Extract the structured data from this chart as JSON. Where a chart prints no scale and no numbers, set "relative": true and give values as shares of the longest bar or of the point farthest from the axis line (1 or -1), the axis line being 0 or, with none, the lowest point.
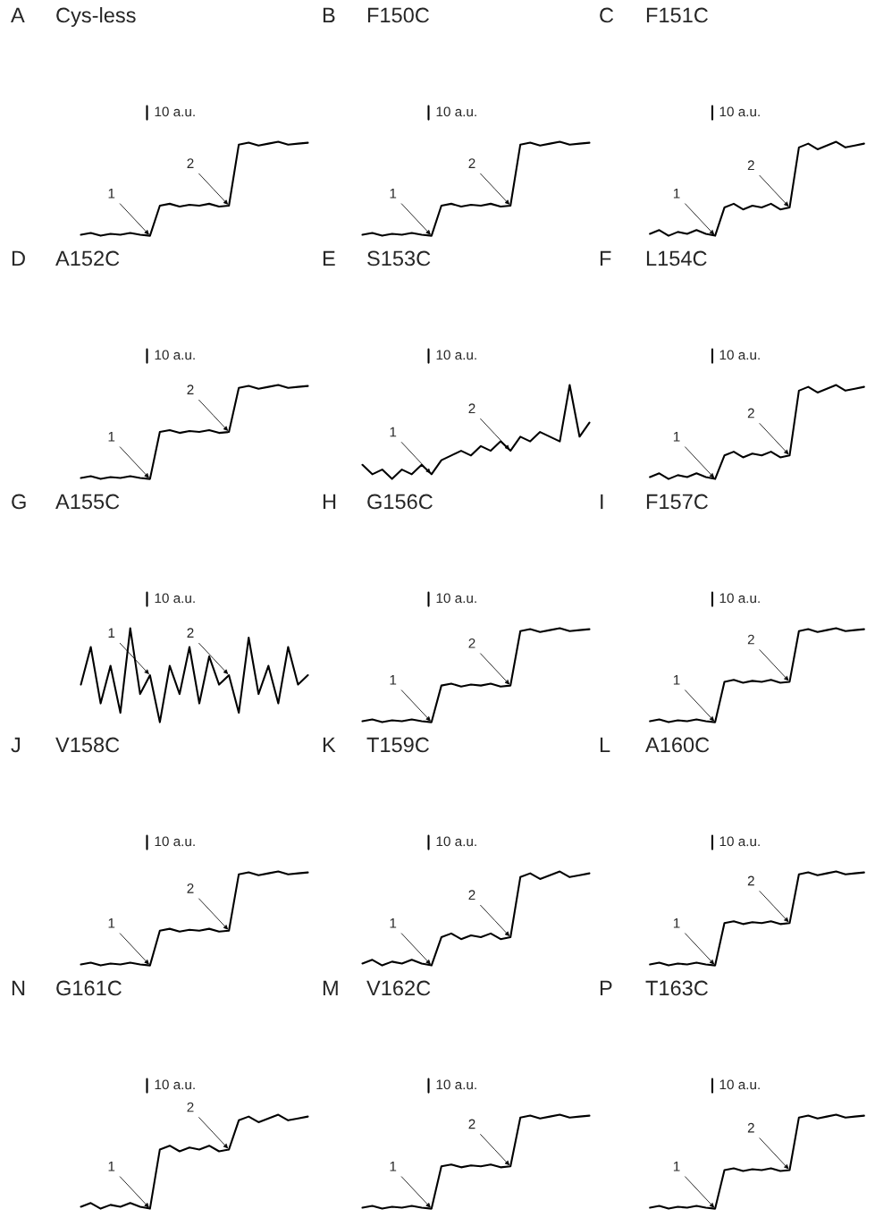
{
  "chart_data": [
    {
      "type": "line",
      "title": "A",
      "subtitle": "Cys-less",
      "relative": true,
      "categories": [
        null,
        null,
        null,
        null,
        null,
        null,
        null,
        null,
        null,
        null,
        null,
        null,
        null,
        null,
        null,
        null,
        null,
        null,
        null,
        null,
        null,
        null,
        null,
        null
      ],
      "series": [
        {
          "color": "#000000",
          "values": [
            0.01,
            0.03,
            0,
            0.02,
            0.01,
            0.03,
            0.01,
            0,
            0.32,
            0.34,
            0.31,
            0.33,
            0.32,
            0.34,
            0.31,
            0.32,
            0.97,
            0.99,
            0.96,
            0.98,
            1,
            0.97,
            0.98,
            0.99
          ]
        }
      ],
      "annotations": [
        "10 a.u.",
        "1",
        "2"
      ]
    },
    {
      "type": "line",
      "title": "B",
      "subtitle": "F150C",
      "relative": true,
      "categories": [
        null,
        null,
        null,
        null,
        null,
        null,
        null,
        null,
        null,
        null,
        null,
        null,
        null,
        null,
        null,
        null,
        null,
        null,
        null,
        null,
        null,
        null,
        null,
        null
      ],
      "series": [
        {
          "color": "#000000",
          "values": [
            0.01,
            0.03,
            0,
            0.02,
            0.01,
            0.03,
            0.01,
            0,
            0.32,
            0.34,
            0.31,
            0.33,
            0.32,
            0.34,
            0.31,
            0.32,
            0.97,
            0.99,
            0.96,
            0.98,
            1,
            0.97,
            0.98,
            0.99
          ]
        }
      ],
      "annotations": [
        "10 a.u.",
        "1",
        "2"
      ]
    },
    {
      "type": "line",
      "title": "C",
      "subtitle": "F151C",
      "relative": true,
      "categories": [
        null,
        null,
        null,
        null,
        null,
        null,
        null,
        null,
        null,
        null,
        null,
        null,
        null,
        null,
        null,
        null,
        null,
        null,
        null,
        null,
        null,
        null,
        null,
        null
      ],
      "series": [
        {
          "color": "#000000",
          "values": [
            0.02,
            0.06,
            0,
            0.04,
            0.02,
            0.06,
            0.02,
            0,
            0.3,
            0.34,
            0.28,
            0.32,
            0.3,
            0.34,
            0.28,
            0.3,
            0.94,
            0.98,
            0.92,
            0.96,
            1,
            0.94,
            0.96,
            0.98
          ]
        }
      ],
      "annotations": [
        "10 a.u.",
        "1",
        "2"
      ]
    },
    {
      "type": "line",
      "title": "D",
      "subtitle": "A152C",
      "relative": true,
      "categories": [
        null,
        null,
        null,
        null,
        null,
        null,
        null,
        null,
        null,
        null,
        null,
        null,
        null,
        null,
        null,
        null,
        null,
        null,
        null,
        null,
        null,
        null,
        null,
        null
      ],
      "series": [
        {
          "color": "#000000",
          "values": [
            0.01,
            0.03,
            0,
            0.02,
            0.01,
            0.03,
            0.01,
            0,
            0.5,
            0.52,
            0.49,
            0.51,
            0.5,
            0.52,
            0.49,
            0.5,
            0.97,
            0.99,
            0.96,
            0.98,
            1,
            0.97,
            0.98,
            0.99
          ]
        }
      ],
      "annotations": [
        "10 a.u.",
        "1",
        "2"
      ]
    },
    {
      "type": "line",
      "title": "E",
      "subtitle": "S153C",
      "relative": true,
      "categories": [
        null,
        null,
        null,
        null,
        null,
        null,
        null,
        null,
        null,
        null,
        null,
        null,
        null,
        null,
        null,
        null,
        null,
        null,
        null,
        null,
        null,
        null,
        null,
        null
      ],
      "series": [
        {
          "color": "#000000",
          "values": [
            0.15,
            0.05,
            0.1,
            0,
            0.1,
            0.05,
            0.15,
            0.05,
            0.2,
            0.25,
            0.3,
            0.25,
            0.35,
            0.3,
            0.4,
            0.3,
            0.45,
            0.4,
            0.5,
            0.45,
            0.4,
            1,
            0.45,
            0.6
          ]
        }
      ],
      "annotations": [
        "10 a.u.",
        "1",
        "2"
      ]
    },
    {
      "type": "line",
      "title": "F",
      "subtitle": "L154C",
      "relative": true,
      "categories": [
        null,
        null,
        null,
        null,
        null,
        null,
        null,
        null,
        null,
        null,
        null,
        null,
        null,
        null,
        null,
        null,
        null,
        null,
        null,
        null,
        null,
        null,
        null,
        null
      ],
      "series": [
        {
          "color": "#000000",
          "values": [
            0.02,
            0.06,
            0,
            0.04,
            0.02,
            0.06,
            0.02,
            0,
            0.25,
            0.29,
            0.23,
            0.27,
            0.25,
            0.29,
            0.23,
            0.25,
            0.94,
            0.98,
            0.92,
            0.96,
            1,
            0.94,
            0.96,
            0.98
          ]
        }
      ],
      "annotations": [
        "10 a.u.",
        "1",
        "2"
      ]
    },
    {
      "type": "line",
      "title": "G",
      "subtitle": "A155C",
      "relative": true,
      "categories": [
        null,
        null,
        null,
        null,
        null,
        null,
        null,
        null,
        null,
        null,
        null,
        null,
        null,
        null,
        null,
        null,
        null,
        null,
        null,
        null,
        null,
        null,
        null,
        null
      ],
      "series": [
        {
          "color": "#000000",
          "values": [
            0.4,
            0.8,
            0.2,
            0.6,
            0.1,
            1,
            0.3,
            0.5,
            0,
            0.6,
            0.3,
            0.8,
            0.2,
            0.7,
            0.4,
            0.5,
            0.1,
            0.9,
            0.3,
            0.6,
            0.2,
            0.8,
            0.4,
            0.5
          ]
        }
      ],
      "annotations": [
        "10 a.u.",
        "1",
        "2"
      ]
    },
    {
      "type": "line",
      "title": "H",
      "subtitle": "G156C",
      "relative": true,
      "categories": [
        null,
        null,
        null,
        null,
        null,
        null,
        null,
        null,
        null,
        null,
        null,
        null,
        null,
        null,
        null,
        null,
        null,
        null,
        null,
        null,
        null,
        null,
        null,
        null
      ],
      "series": [
        {
          "color": "#000000",
          "values": [
            0.01,
            0.03,
            0,
            0.02,
            0.01,
            0.03,
            0.01,
            0,
            0.39,
            0.41,
            0.38,
            0.4,
            0.39,
            0.41,
            0.38,
            0.39,
            0.97,
            0.99,
            0.96,
            0.98,
            1,
            0.97,
            0.98,
            0.99
          ]
        }
      ],
      "annotations": [
        "10 a.u.",
        "1",
        "2"
      ]
    },
    {
      "type": "line",
      "title": "I",
      "subtitle": "F157C",
      "relative": true,
      "categories": [
        null,
        null,
        null,
        null,
        null,
        null,
        null,
        null,
        null,
        null,
        null,
        null,
        null,
        null,
        null,
        null,
        null,
        null,
        null,
        null,
        null,
        null,
        null,
        null
      ],
      "series": [
        {
          "color": "#000000",
          "values": [
            0.01,
            0.03,
            0,
            0.02,
            0.01,
            0.03,
            0.01,
            0,
            0.43,
            0.45,
            0.42,
            0.44,
            0.43,
            0.45,
            0.42,
            0.43,
            0.97,
            0.99,
            0.96,
            0.98,
            1,
            0.97,
            0.98,
            0.99
          ]
        }
      ],
      "annotations": [
        "10 a.u.",
        "1",
        "2"
      ]
    },
    {
      "type": "line",
      "title": "J",
      "subtitle": "V158C",
      "relative": true,
      "categories": [
        null,
        null,
        null,
        null,
        null,
        null,
        null,
        null,
        null,
        null,
        null,
        null,
        null,
        null,
        null,
        null,
        null,
        null,
        null,
        null,
        null,
        null,
        null,
        null
      ],
      "series": [
        {
          "color": "#000000",
          "values": [
            0.01,
            0.03,
            0,
            0.02,
            0.01,
            0.03,
            0.01,
            0,
            0.37,
            0.39,
            0.36,
            0.38,
            0.37,
            0.39,
            0.36,
            0.37,
            0.97,
            0.99,
            0.96,
            0.98,
            1,
            0.97,
            0.98,
            0.99
          ]
        }
      ],
      "annotations": [
        "10 a.u.",
        "1",
        "2"
      ]
    },
    {
      "type": "line",
      "title": "K",
      "subtitle": "T159C",
      "relative": true,
      "categories": [
        null,
        null,
        null,
        null,
        null,
        null,
        null,
        null,
        null,
        null,
        null,
        null,
        null,
        null,
        null,
        null,
        null,
        null,
        null,
        null,
        null,
        null,
        null,
        null
      ],
      "series": [
        {
          "color": "#000000",
          "values": [
            0.02,
            0.06,
            0,
            0.04,
            0.02,
            0.06,
            0.02,
            0,
            0.3,
            0.34,
            0.28,
            0.32,
            0.3,
            0.34,
            0.28,
            0.3,
            0.94,
            0.98,
            0.92,
            0.96,
            1,
            0.94,
            0.96,
            0.98
          ]
        }
      ],
      "annotations": [
        "10 a.u.",
        "1",
        "2"
      ]
    },
    {
      "type": "line",
      "title": "L",
      "subtitle": "A160C",
      "relative": true,
      "categories": [
        null,
        null,
        null,
        null,
        null,
        null,
        null,
        null,
        null,
        null,
        null,
        null,
        null,
        null,
        null,
        null,
        null,
        null,
        null,
        null,
        null,
        null,
        null,
        null
      ],
      "series": [
        {
          "color": "#000000",
          "values": [
            0.01,
            0.03,
            0,
            0.02,
            0.01,
            0.03,
            0.01,
            0,
            0.45,
            0.47,
            0.44,
            0.46,
            0.45,
            0.47,
            0.44,
            0.45,
            0.97,
            0.99,
            0.96,
            0.98,
            1,
            0.97,
            0.98,
            0.99
          ]
        }
      ],
      "annotations": [
        "10 a.u.",
        "1",
        "2"
      ]
    },
    {
      "type": "line",
      "title": "N",
      "subtitle": "G161C",
      "relative": true,
      "categories": [
        null,
        null,
        null,
        null,
        null,
        null,
        null,
        null,
        null,
        null,
        null,
        null,
        null,
        null,
        null,
        null,
        null,
        null,
        null,
        null,
        null,
        null,
        null,
        null
      ],
      "series": [
        {
          "color": "#000000",
          "values": [
            0.02,
            0.06,
            0,
            0.04,
            0.02,
            0.06,
            0.02,
            0,
            0.63,
            0.67,
            0.61,
            0.65,
            0.63,
            0.67,
            0.61,
            0.63,
            0.94,
            0.98,
            0.92,
            0.96,
            1,
            0.94,
            0.96,
            0.98
          ]
        }
      ],
      "annotations": [
        "10 a.u.",
        "1",
        "2"
      ]
    },
    {
      "type": "line",
      "title": "M",
      "subtitle": "V162C",
      "relative": true,
      "categories": [
        null,
        null,
        null,
        null,
        null,
        null,
        null,
        null,
        null,
        null,
        null,
        null,
        null,
        null,
        null,
        null,
        null,
        null,
        null,
        null,
        null,
        null,
        null,
        null
      ],
      "series": [
        {
          "color": "#000000",
          "values": [
            0.01,
            0.03,
            0,
            0.02,
            0.01,
            0.03,
            0.01,
            0,
            0.45,
            0.47,
            0.44,
            0.46,
            0.45,
            0.47,
            0.44,
            0.45,
            0.97,
            0.99,
            0.96,
            0.98,
            1,
            0.97,
            0.98,
            0.99
          ]
        }
      ],
      "annotations": [
        "10 a.u.",
        "1",
        "2"
      ]
    },
    {
      "type": "line",
      "title": "P",
      "subtitle": "T163C",
      "relative": true,
      "categories": [
        null,
        null,
        null,
        null,
        null,
        null,
        null,
        null,
        null,
        null,
        null,
        null,
        null,
        null,
        null,
        null,
        null,
        null,
        null,
        null,
        null,
        null,
        null,
        null
      ],
      "series": [
        {
          "color": "#000000",
          "values": [
            0.01,
            0.03,
            0,
            0.02,
            0.01,
            0.03,
            0.01,
            0,
            0.41,
            0.43,
            0.4,
            0.42,
            0.41,
            0.43,
            0.4,
            0.41,
            0.97,
            0.99,
            0.96,
            0.98,
            1,
            0.97,
            0.98,
            0.99
          ]
        }
      ],
      "annotations": [
        "10 a.u.",
        "1",
        "2"
      ]
    }
  ]
}
